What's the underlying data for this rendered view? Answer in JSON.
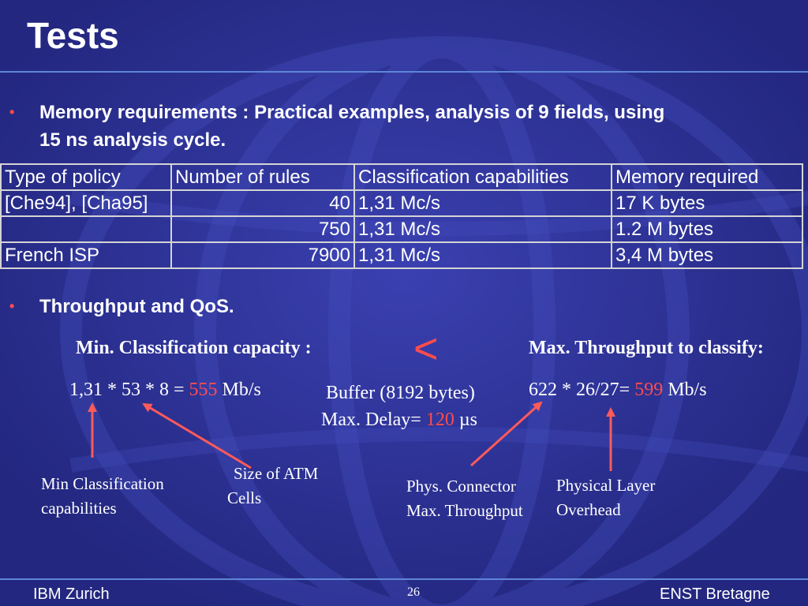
{
  "title": "Tests",
  "bullets": {
    "memory_line1": "Memory requirements : Practical examples, analysis of 9 fields, using",
    "memory_line2": "15 ns analysis cycle.",
    "throughput": "Throughput and QoS."
  },
  "table": {
    "headers": [
      "Type of policy",
      "Number of rules",
      "Classification capabilities",
      "Memory required"
    ],
    "rows": [
      [
        "[Che94], [Cha95]",
        "40",
        "1,31 Mc/s",
        "17 K bytes"
      ],
      [
        "",
        "750",
        "1,31 Mc/s",
        "1.2 M bytes"
      ],
      [
        "French ISP",
        "7900",
        "1,31 Mc/s",
        "3,4 M bytes"
      ]
    ]
  },
  "throughput": {
    "min_heading": "Min. Classification capacity :",
    "lt_symbol": "<",
    "max_heading": "Max. Throughput to classify:",
    "min_formula": "1,31 * 53 * 8 = ",
    "min_value": "555",
    "min_unit": " Mb/s",
    "buffer": "Buffer (8192 bytes)",
    "delay_label": "Max. Delay= ",
    "delay_value": "120",
    "delay_unit": " µs",
    "max_formula": "622 * 26/27= ",
    "max_value": "599",
    "max_unit": " Mb/s",
    "notes": {
      "min_class_line1": "Min Classification",
      "min_class_line2": "capabilities",
      "atm_line1": "Size of ATM",
      "atm_line2": "Cells",
      "phys_line1": "Phys. Connector",
      "phys_line2": "Max. Throughput",
      "overhead_line1": "Physical Layer",
      "overhead_line2": "Overhead"
    }
  },
  "footer": {
    "left": "IBM Zurich",
    "page": "26",
    "right": "ENST Bretagne"
  },
  "colors": {
    "background": "#2a2e96",
    "accent_red": "#ff4d4d",
    "rule_line": "#5f86d6"
  }
}
